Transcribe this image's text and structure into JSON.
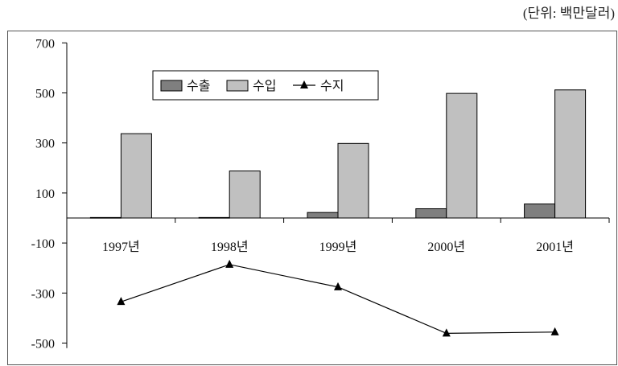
{
  "unit_note": "(단위: 백만달러)",
  "chart_data": {
    "type": "bar",
    "categories": [
      "1997년",
      "1998년",
      "1999년",
      "2000년",
      "2001년"
    ],
    "series": [
      {
        "name": "수출",
        "type": "bar",
        "color": "#7f7f7f",
        "values": [
          2,
          2,
          22,
          37,
          56
        ]
      },
      {
        "name": "수입",
        "type": "bar",
        "color": "#c0c0c0",
        "values": [
          337,
          188,
          298,
          498,
          512
        ]
      },
      {
        "name": "수지",
        "type": "line",
        "marker": "triangle",
        "color": "#000000",
        "values": [
          -335,
          -186,
          -276,
          -461,
          -456
        ]
      }
    ],
    "yticks": [
      700,
      500,
      300,
      100,
      -100,
      -300,
      -500
    ],
    "ylim": [
      -560,
      700
    ],
    "legend_position": "top-center",
    "grid": false
  }
}
